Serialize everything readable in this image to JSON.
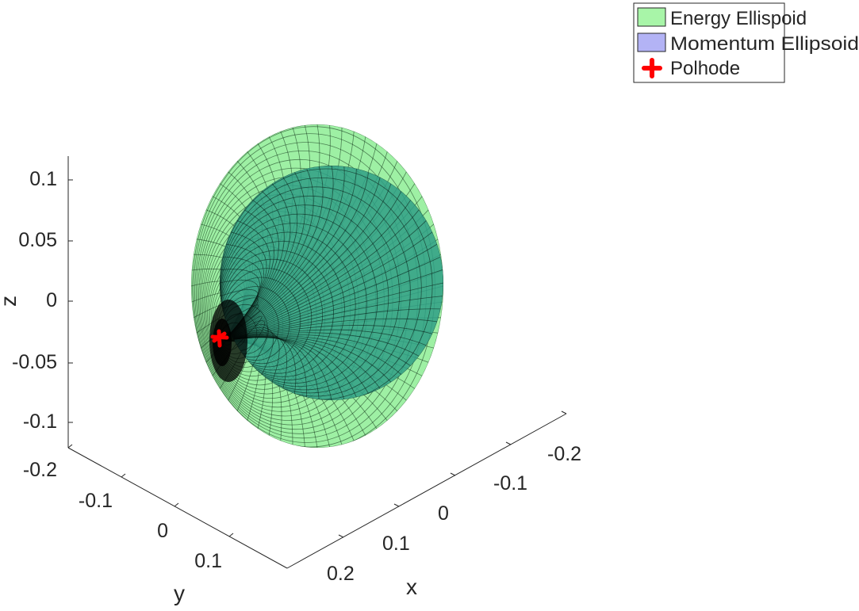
{
  "chart_data": {
    "type": "surface3d",
    "title": "",
    "axes": {
      "x": {
        "label": "x",
        "ticks": [
          "-0.2",
          "-0.1",
          "0",
          "0.1",
          "0.2"
        ]
      },
      "y": {
        "label": "y",
        "ticks": [
          "-0.2",
          "-0.1",
          "0",
          "0.1"
        ]
      },
      "z": {
        "label": "z",
        "ticks": [
          "0.1",
          "0.05",
          "0",
          "-0.05",
          "-0.1"
        ]
      }
    },
    "legend": {
      "placement": "top-right",
      "entries": [
        {
          "label": "Energy Ellispoid",
          "color": "#a8f5a8",
          "marker": "patch"
        },
        {
          "label": "Momentum Ellipsoid",
          "color": "#b3b3f5",
          "marker": "patch"
        },
        {
          "label": "Polhode",
          "color": "#ff0000",
          "marker": "plus"
        }
      ]
    },
    "series": [
      {
        "name": "Energy Ellispoid",
        "kind": "ellipsoid-mesh",
        "color": "#a8f5a8"
      },
      {
        "name": "Momentum Ellipsoid",
        "kind": "ellipsoid-mesh",
        "color": "#b3b3f5"
      },
      {
        "name": "Polhode",
        "kind": "curve",
        "color": "#ff0000"
      }
    ]
  }
}
